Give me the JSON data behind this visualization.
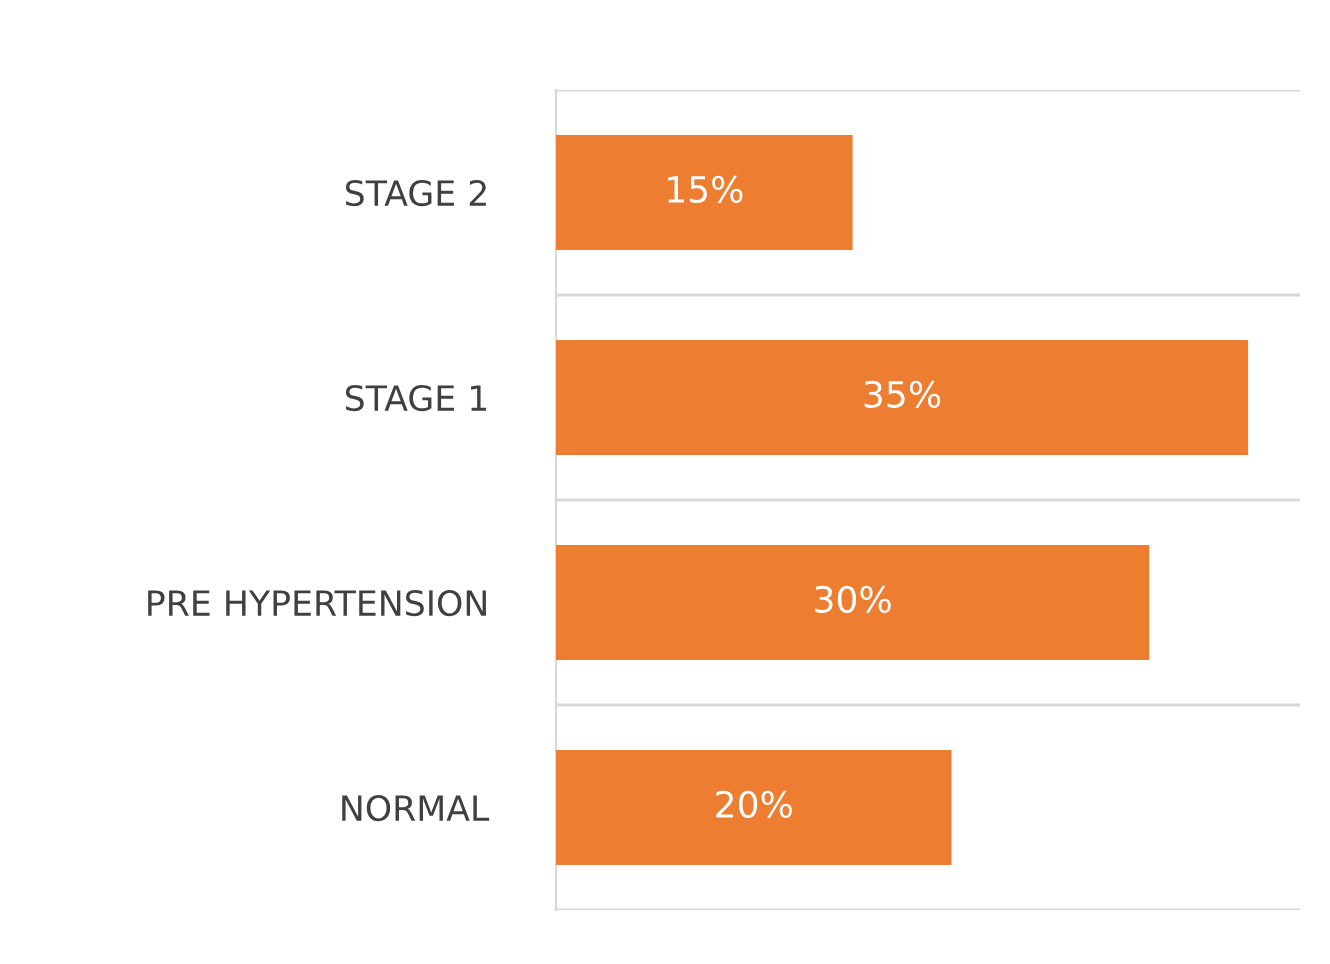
{
  "chart_data": {
    "type": "bar",
    "orientation": "horizontal",
    "categories": [
      "STAGE 2",
      "STAGE 1",
      "PRE HYPERTENSION",
      "NORMAL"
    ],
    "values": [
      15,
      35,
      30,
      20
    ],
    "value_labels": [
      "15%",
      "35%",
      "30%",
      "20%"
    ],
    "color": "#ed7d31",
    "grid": "y"
  }
}
